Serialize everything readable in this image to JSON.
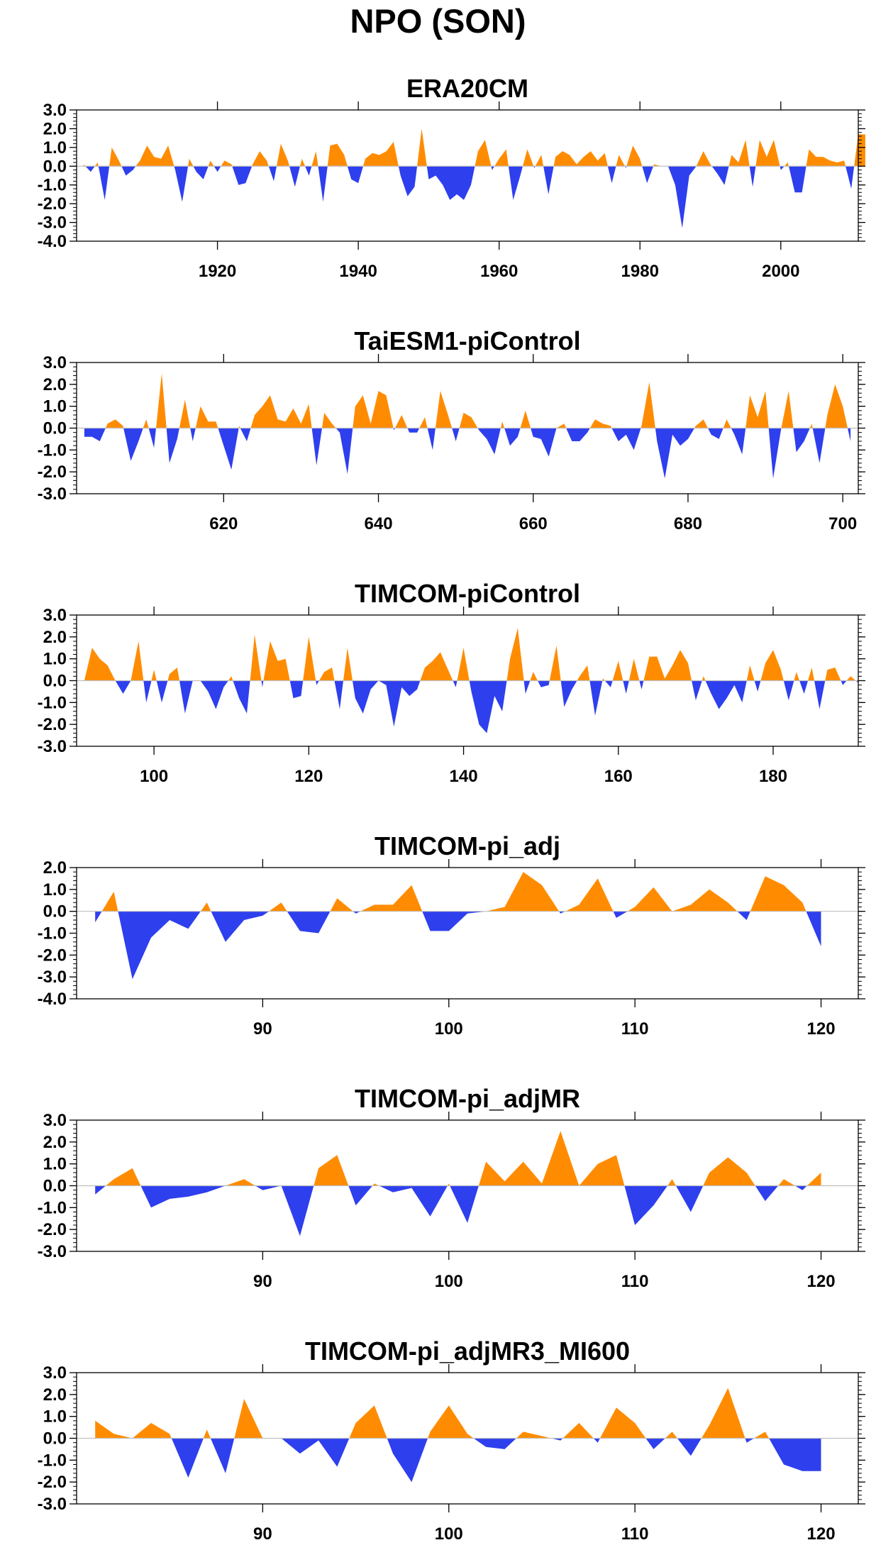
{
  "title": "NPO (SON)",
  "colors": {
    "positive": "#ff8c00",
    "negative": "#2e3fee",
    "axis": "#000000",
    "zero_line": "#bfbfbf"
  },
  "chart_data": [
    {
      "type": "area",
      "title": "ERA20CM",
      "xlabel": "",
      "ylabel": "",
      "xlim": [
        1900,
        2011
      ],
      "ylim": [
        -4.0,
        3.0
      ],
      "xticks": [
        1920,
        1940,
        1960,
        1980,
        2000
      ],
      "yticks": [
        -4.0,
        -3.0,
        -2.0,
        -1.0,
        0.0,
        1.0,
        2.0,
        3.0
      ],
      "grid": false,
      "x_start": 1901,
      "values": [
        0.1,
        -0.3,
        0.2,
        -1.8,
        1.0,
        0.3,
        -0.5,
        -0.2,
        0.3,
        1.1,
        0.5,
        0.4,
        1.1,
        -0.2,
        -1.9,
        0.4,
        -0.3,
        -0.7,
        0.3,
        -0.3,
        0.3,
        0.1,
        -1.0,
        -0.9,
        0.1,
        0.8,
        0.3,
        -0.8,
        1.2,
        0.3,
        -1.1,
        0.4,
        -0.5,
        0.8,
        -1.9,
        1.1,
        1.2,
        0.6,
        -0.7,
        -0.9,
        0.4,
        0.7,
        0.6,
        0.8,
        1.3,
        -0.5,
        -1.6,
        -1.1,
        2.0,
        -0.7,
        -0.5,
        -1.0,
        -1.8,
        -1.5,
        -1.8,
        -1.0,
        0.8,
        1.4,
        -0.2,
        0.4,
        0.9,
        -1.8,
        -0.5,
        0.9,
        -0.1,
        0.6,
        -1.5,
        0.5,
        0.8,
        0.6,
        0.1,
        0.5,
        0.8,
        0.3,
        0.7,
        -0.9,
        0.6,
        -0.1,
        1.1,
        0.4,
        -0.9,
        0.1,
        0.0,
        0.0,
        -1.0,
        -3.3,
        -0.5,
        0.0,
        0.8,
        0.1,
        -0.4,
        -1.0,
        0.6,
        0.2,
        1.4,
        -1.1,
        1.4,
        0.5,
        1.4,
        -0.2,
        0.2,
        -1.4,
        -1.4,
        0.9,
        0.5,
        0.5,
        0.3,
        0.2,
        0.3,
        -1.2,
        1.7,
        1.7
      ]
    },
    {
      "type": "area",
      "title": "TaiESM1-piControl",
      "xlabel": "",
      "ylabel": "",
      "xlim": [
        601,
        702
      ],
      "ylim": [
        -3.0,
        3.0
      ],
      "xticks": [
        620,
        640,
        660,
        680,
        700
      ],
      "yticks": [
        -3.0,
        -2.0,
        -1.0,
        0.0,
        1.0,
        2.0,
        3.0
      ],
      "grid": false,
      "x_start": 602,
      "values": [
        -0.4,
        -0.4,
        -0.6,
        0.2,
        0.4,
        0.1,
        -1.5,
        -0.6,
        0.4,
        -0.9,
        2.5,
        -1.6,
        -0.5,
        1.3,
        -0.6,
        1.0,
        0.3,
        0.3,
        -0.8,
        -1.9,
        0.1,
        -0.6,
        0.6,
        1.0,
        1.5,
        0.4,
        0.3,
        0.9,
        0.2,
        1.1,
        -1.7,
        0.7,
        0.2,
        -0.2,
        -2.1,
        1.0,
        1.5,
        0.2,
        1.7,
        1.5,
        -0.1,
        0.6,
        -0.2,
        -0.2,
        0.5,
        -1.0,
        1.7,
        0.6,
        -0.6,
        0.7,
        0.5,
        -0.1,
        -0.5,
        -1.2,
        0.3,
        -0.8,
        -0.4,
        0.8,
        -0.4,
        -0.5,
        -1.3,
        0.0,
        0.2,
        -0.6,
        -0.6,
        -0.2,
        0.4,
        0.2,
        0.1,
        -0.6,
        -0.3,
        -1.0,
        0.1,
        2.1,
        -0.6,
        -2.3,
        -0.3,
        -0.8,
        -0.5,
        0.1,
        0.4,
        -0.3,
        -0.5,
        0.4,
        -0.3,
        -1.2,
        1.5,
        0.5,
        1.7,
        -2.3,
        -0.1,
        1.7,
        -1.1,
        -0.6,
        0.2,
        -1.6,
        0.6,
        2.0,
        1.0,
        -0.6
      ]
    },
    {
      "type": "area",
      "title": "TIMCOM-piControl",
      "xlabel": "",
      "ylabel": "",
      "xlim": [
        90,
        191
      ],
      "ylim": [
        -3.0,
        3.0
      ],
      "xticks": [
        100,
        120,
        140,
        160,
        180
      ],
      "yticks": [
        -3.0,
        -2.0,
        -1.0,
        0.0,
        1.0,
        2.0,
        3.0
      ],
      "grid": false,
      "x_start": 91,
      "values": [
        0.0,
        1.5,
        1.0,
        0.7,
        0.0,
        -0.6,
        0.0,
        1.8,
        -1.0,
        0.5,
        -1.0,
        0.3,
        0.6,
        -1.5,
        0.0,
        0.0,
        -0.5,
        -1.3,
        -0.3,
        0.2,
        -0.8,
        -1.5,
        2.1,
        -0.3,
        1.8,
        0.9,
        1.0,
        -0.8,
        -0.7,
        2.0,
        -0.2,
        0.4,
        0.6,
        -1.3,
        1.5,
        -0.8,
        -1.5,
        -0.4,
        0.0,
        -0.2,
        -2.1,
        -0.3,
        -0.7,
        -0.4,
        0.6,
        0.9,
        1.3,
        0.5,
        -0.3,
        1.5,
        -0.5,
        -2.0,
        -2.4,
        -0.7,
        -1.4,
        1.0,
        2.4,
        -0.6,
        0.4,
        -0.3,
        -0.2,
        1.6,
        -1.2,
        -0.4,
        0.2,
        0.7,
        -1.6,
        0.1,
        -0.3,
        0.9,
        -0.6,
        1.0,
        -0.4,
        1.1,
        1.1,
        0.1,
        0.7,
        1.4,
        0.8,
        -0.9,
        0.2,
        -0.6,
        -1.3,
        -0.8,
        -0.2,
        -1.0,
        0.7,
        -0.5,
        0.8,
        1.4,
        0.5,
        -0.9,
        0.4,
        -0.6,
        0.6,
        -1.3,
        0.5,
        0.6,
        -0.2,
        0.2,
        -0.1
      ]
    },
    {
      "type": "area",
      "title": "TIMCOM-pi_adj",
      "xlabel": "",
      "ylabel": "",
      "xlim": [
        80,
        122
      ],
      "ylim": [
        -4.0,
        2.0
      ],
      "xticks": [
        90,
        100,
        110,
        120
      ],
      "yticks": [
        -4.0,
        -3.0,
        -2.0,
        -1.0,
        0.0,
        1.0,
        2.0
      ],
      "grid": false,
      "x_start": 81,
      "values": [
        -0.5,
        0.9,
        -3.1,
        -1.2,
        -0.4,
        -0.8,
        0.4,
        -1.4,
        -0.4,
        -0.2,
        0.4,
        -0.9,
        -1.0,
        0.6,
        -0.1,
        0.3,
        0.3,
        1.2,
        -0.9,
        -0.9,
        -0.1,
        0.0,
        0.2,
        1.8,
        1.2,
        -0.1,
        0.3,
        1.5,
        -0.3,
        0.2,
        1.1,
        0.0,
        0.3,
        1.0,
        0.4,
        -0.4,
        1.6,
        1.2,
        0.4,
        -1.6
      ]
    },
    {
      "type": "area",
      "title": "TIMCOM-pi_adjMR",
      "xlabel": "",
      "ylabel": "",
      "xlim": [
        80,
        122
      ],
      "ylim": [
        -3.0,
        3.0
      ],
      "xticks": [
        90,
        100,
        110,
        120
      ],
      "yticks": [
        -3.0,
        -2.0,
        -1.0,
        0.0,
        1.0,
        2.0,
        3.0
      ],
      "grid": false,
      "x_start": 81,
      "values": [
        -0.4,
        0.3,
        0.8,
        -1.0,
        -0.6,
        -0.5,
        -0.3,
        0.0,
        0.3,
        -0.2,
        0.0,
        -2.3,
        0.8,
        1.4,
        -0.9,
        0.1,
        -0.3,
        -0.1,
        -1.4,
        0.1,
        -1.7,
        1.1,
        0.2,
        1.1,
        0.1,
        2.5,
        0.0,
        1.0,
        1.4,
        -1.8,
        -0.9,
        0.3,
        -1.2,
        0.6,
        1.3,
        0.6,
        -0.7,
        0.3,
        -0.2,
        0.6
      ]
    },
    {
      "type": "area",
      "title": "TIMCOM-pi_adjMR3_MI600",
      "xlabel": "",
      "ylabel": "",
      "xlim": [
        80,
        122
      ],
      "ylim": [
        -3.0,
        3.0
      ],
      "xticks": [
        90,
        100,
        110,
        120
      ],
      "yticks": [
        -3.0,
        -2.0,
        -1.0,
        0.0,
        1.0,
        2.0,
        3.0
      ],
      "grid": false,
      "x_start": 81,
      "values": [
        0.8,
        0.2,
        0.0,
        0.7,
        0.2,
        -1.8,
        0.4,
        -1.6,
        1.8,
        0.0,
        0.0,
        -0.7,
        -0.1,
        -1.3,
        0.7,
        1.5,
        -0.7,
        -2.0,
        0.3,
        1.5,
        0.2,
        -0.4,
        -0.5,
        0.3,
        0.1,
        -0.1,
        0.7,
        -0.2,
        1.4,
        0.7,
        -0.5,
        0.3,
        -0.8,
        0.6,
        2.3,
        -0.2,
        0.3,
        -1.2,
        -1.5,
        -1.5
      ]
    }
  ]
}
